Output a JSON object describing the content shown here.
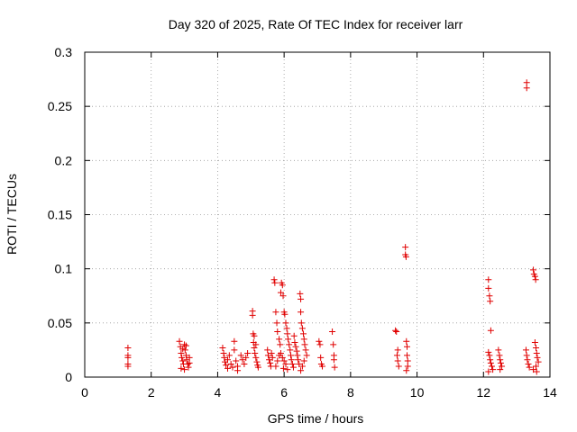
{
  "chart_data": {
    "type": "scatter",
    "title": "Day 320 of 2025, Rate Of TEC Index for receiver larr",
    "xlabel": "GPS time / hours",
    "ylabel": "ROTI / TECUs",
    "xlim": [
      0,
      14
    ],
    "ylim": [
      0,
      0.3
    ],
    "xticks": [
      0,
      2,
      4,
      6,
      8,
      10,
      12,
      14
    ],
    "xtick_labels": [
      "0",
      "2",
      "4",
      "6",
      "8",
      "10",
      "12",
      "14"
    ],
    "yticks": [
      0,
      0.05,
      0.1,
      0.15,
      0.2,
      0.25,
      0.3
    ],
    "ytick_labels": [
      "0",
      "0.05",
      "0.1",
      "0.15",
      "0.2",
      "0.25",
      "0.3"
    ],
    "grid": true,
    "marker": "+",
    "color": "#e00000",
    "series": [
      {
        "points": [
          [
            1.3,
            0.027
          ],
          [
            1.3,
            0.02
          ],
          [
            1.3,
            0.018
          ],
          [
            1.3,
            0.012
          ],
          [
            1.3,
            0.01
          ],
          [
            2.85,
            0.033
          ],
          [
            2.88,
            0.028
          ],
          [
            2.9,
            0.022
          ],
          [
            2.92,
            0.018
          ],
          [
            2.95,
            0.015
          ],
          [
            2.97,
            0.012
          ],
          [
            3.0,
            0.03
          ],
          [
            3.02,
            0.025
          ],
          [
            3.05,
            0.02
          ],
          [
            3.07,
            0.016
          ],
          [
            3.1,
            0.012
          ],
          [
            3.12,
            0.009
          ],
          [
            2.9,
            0.008
          ],
          [
            3.0,
            0.007
          ],
          [
            3.15,
            0.018
          ],
          [
            3.15,
            0.013
          ],
          [
            2.95,
            0.026
          ],
          [
            3.05,
            0.029
          ],
          [
            4.15,
            0.027
          ],
          [
            4.18,
            0.022
          ],
          [
            4.2,
            0.018
          ],
          [
            4.22,
            0.014
          ],
          [
            4.25,
            0.011
          ],
          [
            4.3,
            0.016
          ],
          [
            4.35,
            0.02
          ],
          [
            4.4,
            0.012
          ],
          [
            4.45,
            0.009
          ],
          [
            4.5,
            0.033
          ],
          [
            4.5,
            0.025
          ],
          [
            4.55,
            0.015
          ],
          [
            4.6,
            0.01
          ],
          [
            4.7,
            0.02
          ],
          [
            4.75,
            0.016
          ],
          [
            4.8,
            0.012
          ],
          [
            4.85,
            0.018
          ],
          [
            4.9,
            0.022
          ],
          [
            4.3,
            0.008
          ],
          [
            4.6,
            0.006
          ],
          [
            5.05,
            0.061
          ],
          [
            5.05,
            0.057
          ],
          [
            5.07,
            0.04
          ],
          [
            5.08,
            0.032
          ],
          [
            5.1,
            0.027
          ],
          [
            5.12,
            0.022
          ],
          [
            5.15,
            0.018
          ],
          [
            5.18,
            0.014
          ],
          [
            5.2,
            0.011
          ],
          [
            5.22,
            0.009
          ],
          [
            5.1,
            0.038
          ],
          [
            5.15,
            0.03
          ],
          [
            5.5,
            0.025
          ],
          [
            5.52,
            0.02
          ],
          [
            5.55,
            0.016
          ],
          [
            5.58,
            0.013
          ],
          [
            5.6,
            0.01
          ],
          [
            5.62,
            0.022
          ],
          [
            5.65,
            0.018
          ],
          [
            5.7,
            0.09
          ],
          [
            5.72,
            0.087
          ],
          [
            5.75,
            0.06
          ],
          [
            5.78,
            0.05
          ],
          [
            5.8,
            0.042
          ],
          [
            5.85,
            0.035
          ],
          [
            5.88,
            0.03
          ],
          [
            5.9,
            0.078
          ],
          [
            5.92,
            0.087
          ],
          [
            5.95,
            0.085
          ],
          [
            5.97,
            0.075
          ],
          [
            6.0,
            0.06
          ],
          [
            6.02,
            0.058
          ],
          [
            6.05,
            0.05
          ],
          [
            6.08,
            0.045
          ],
          [
            6.1,
            0.04
          ],
          [
            6.12,
            0.035
          ],
          [
            6.15,
            0.03
          ],
          [
            6.18,
            0.025
          ],
          [
            6.2,
            0.02
          ],
          [
            6.22,
            0.016
          ],
          [
            6.25,
            0.012
          ],
          [
            6.28,
            0.009
          ],
          [
            5.9,
            0.022
          ],
          [
            5.95,
            0.018
          ],
          [
            6.0,
            0.015
          ],
          [
            6.05,
            0.012
          ],
          [
            5.85,
            0.02
          ],
          [
            5.8,
            0.015
          ],
          [
            5.75,
            0.01
          ],
          [
            5.98,
            0.008
          ],
          [
            6.1,
            0.007
          ],
          [
            6.3,
            0.038
          ],
          [
            6.32,
            0.032
          ],
          [
            6.35,
            0.028
          ],
          [
            6.38,
            0.024
          ],
          [
            6.4,
            0.02
          ],
          [
            6.42,
            0.016
          ],
          [
            6.45,
            0.012
          ],
          [
            6.48,
            0.077
          ],
          [
            6.5,
            0.072
          ],
          [
            6.5,
            0.06
          ],
          [
            6.52,
            0.05
          ],
          [
            6.55,
            0.045
          ],
          [
            6.58,
            0.04
          ],
          [
            6.6,
            0.035
          ],
          [
            6.62,
            0.03
          ],
          [
            6.65,
            0.025
          ],
          [
            6.68,
            0.02
          ],
          [
            6.6,
            0.015
          ],
          [
            6.55,
            0.01
          ],
          [
            6.5,
            0.006
          ],
          [
            7.05,
            0.033
          ],
          [
            7.08,
            0.03
          ],
          [
            7.1,
            0.018
          ],
          [
            7.12,
            0.012
          ],
          [
            7.15,
            0.01
          ],
          [
            7.45,
            0.042
          ],
          [
            7.48,
            0.03
          ],
          [
            7.5,
            0.02
          ],
          [
            7.5,
            0.016
          ],
          [
            7.52,
            0.009
          ],
          [
            9.35,
            0.043
          ],
          [
            9.38,
            0.042
          ],
          [
            9.4,
            0.02
          ],
          [
            9.42,
            0.015
          ],
          [
            9.45,
            0.01
          ],
          [
            9.42,
            0.025
          ],
          [
            9.65,
            0.12
          ],
          [
            9.65,
            0.113
          ],
          [
            9.67,
            0.111
          ],
          [
            9.68,
            0.033
          ],
          [
            9.7,
            0.028
          ],
          [
            9.7,
            0.02
          ],
          [
            9.72,
            0.015
          ],
          [
            9.72,
            0.01
          ],
          [
            9.68,
            0.006
          ],
          [
            12.15,
            0.09
          ],
          [
            12.15,
            0.082
          ],
          [
            12.18,
            0.075
          ],
          [
            12.2,
            0.07
          ],
          [
            12.22,
            0.043
          ],
          [
            12.15,
            0.023
          ],
          [
            12.18,
            0.02
          ],
          [
            12.2,
            0.016
          ],
          [
            12.22,
            0.013
          ],
          [
            12.25,
            0.01
          ],
          [
            12.28,
            0.007
          ],
          [
            12.15,
            0.005
          ],
          [
            12.45,
            0.025
          ],
          [
            12.48,
            0.02
          ],
          [
            12.5,
            0.016
          ],
          [
            12.52,
            0.013
          ],
          [
            12.55,
            0.01
          ],
          [
            12.5,
            0.007
          ],
          [
            13.3,
            0.272
          ],
          [
            13.3,
            0.267
          ],
          [
            13.28,
            0.025
          ],
          [
            13.3,
            0.02
          ],
          [
            13.32,
            0.016
          ],
          [
            13.35,
            0.012
          ],
          [
            13.38,
            0.009
          ],
          [
            13.5,
            0.099
          ],
          [
            13.52,
            0.095
          ],
          [
            13.55,
            0.093
          ],
          [
            13.57,
            0.09
          ],
          [
            13.55,
            0.032
          ],
          [
            13.58,
            0.027
          ],
          [
            13.6,
            0.022
          ],
          [
            13.62,
            0.018
          ],
          [
            13.65,
            0.014
          ],
          [
            13.58,
            0.01
          ],
          [
            13.5,
            0.007
          ],
          [
            13.6,
            0.005
          ]
        ]
      }
    ]
  }
}
